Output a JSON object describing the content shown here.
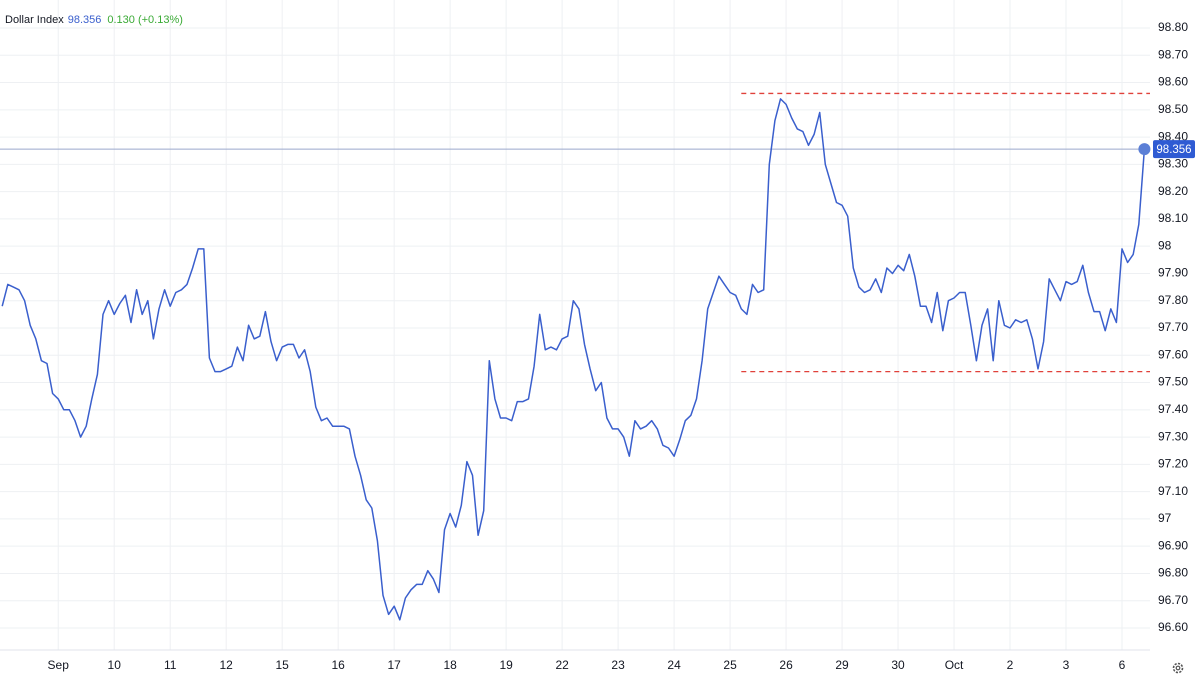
{
  "chart_data": {
    "type": "line",
    "change": "0.130 (+0.13%)",
    "last_price": 98.356,
    "series": [
      {
        "name": "Dollar Index",
        "color": "#3a5fcd",
        "values": [
          97.78,
          97.86,
          97.85,
          97.84,
          97.8,
          97.71,
          97.66,
          97.58,
          97.57,
          97.46,
          97.44,
          97.4,
          97.4,
          97.36,
          97.3,
          97.34,
          97.44,
          97.53,
          97.75,
          97.8,
          97.75,
          97.79,
          97.82,
          97.72,
          97.84,
          97.75,
          97.8,
          97.66,
          97.77,
          97.84,
          97.78,
          97.83,
          97.84,
          97.86,
          97.92,
          97.99,
          97.99,
          97.59,
          97.54,
          97.54,
          97.55,
          97.56,
          97.63,
          97.58,
          97.71,
          97.66,
          97.67,
          97.76,
          97.65,
          97.58,
          97.63,
          97.64,
          97.64,
          97.59,
          97.62,
          97.54,
          97.41,
          97.36,
          97.37,
          97.34,
          97.34,
          97.34,
          97.33,
          97.23,
          97.16,
          97.07,
          97.04,
          96.92,
          96.72,
          96.65,
          96.68,
          96.63,
          96.71,
          96.74,
          96.76,
          96.76,
          96.81,
          96.78,
          96.73,
          96.96,
          97.02,
          96.97,
          97.05,
          97.21,
          97.16,
          96.94,
          97.03,
          97.58,
          97.44,
          97.37,
          97.37,
          97.36,
          97.43,
          97.43,
          97.44,
          97.56,
          97.75,
          97.62,
          97.63,
          97.62,
          97.66,
          97.67,
          97.8,
          97.77,
          97.64,
          97.55,
          97.47,
          97.5,
          97.37,
          97.33,
          97.33,
          97.3,
          97.23,
          97.36,
          97.33,
          97.34,
          97.36,
          97.33,
          97.27,
          97.26,
          97.23,
          97.29,
          97.36,
          97.38,
          97.44,
          97.58,
          97.77,
          97.83,
          97.89,
          97.86,
          97.83,
          97.82,
          97.77,
          97.75,
          97.86,
          97.83,
          97.84,
          98.3,
          98.46,
          98.54,
          98.52,
          98.47,
          98.43,
          98.42,
          98.37,
          98.41,
          98.49,
          98.3,
          98.23,
          98.16,
          98.15,
          98.11,
          97.92,
          97.85,
          97.83,
          97.84,
          97.88,
          97.83,
          97.92,
          97.9,
          97.93,
          97.91,
          97.97,
          97.89,
          97.78,
          97.78,
          97.72,
          97.83,
          97.69,
          97.8,
          97.81,
          97.83,
          97.83,
          97.71,
          97.58,
          97.71,
          97.77,
          97.58,
          97.8,
          97.71,
          97.7,
          97.73,
          97.72,
          97.73,
          97.66,
          97.55,
          97.65,
          97.88,
          97.84,
          97.8,
          97.87,
          97.86,
          97.87,
          97.93,
          97.83,
          97.76,
          97.76,
          97.69,
          97.77,
          97.72,
          97.99,
          97.94,
          97.97,
          98.08,
          98.356
        ]
      }
    ],
    "x": [
      -1.0,
      -0.9,
      -0.8,
      -0.7,
      -0.6,
      -0.5,
      -0.4,
      -0.3,
      -0.2,
      -0.1,
      0.0,
      0.1,
      0.2,
      0.3,
      0.4,
      0.5,
      0.6,
      0.7,
      0.8,
      0.9,
      1.0,
      1.1,
      1.2,
      1.3,
      1.4,
      1.5,
      1.6,
      1.7,
      1.8,
      1.9,
      2.0,
      2.1,
      2.2,
      2.3,
      2.4,
      2.5,
      2.6,
      2.7,
      2.8,
      2.9,
      3.0,
      3.1,
      3.2,
      3.3,
      3.4,
      3.5,
      3.6,
      3.7,
      3.8,
      3.9,
      4.0,
      4.1,
      4.2,
      4.3,
      4.4,
      4.5,
      4.6,
      4.7,
      4.8,
      4.9,
      5.0,
      5.1,
      5.2,
      5.3,
      5.4,
      5.5,
      5.6,
      5.7,
      5.8,
      5.9,
      6.0,
      6.1,
      6.2,
      6.3,
      6.4,
      6.5,
      6.6,
      6.7,
      6.8,
      6.9,
      7.0,
      7.1,
      7.2,
      7.3,
      7.4,
      7.5,
      7.6,
      7.7,
      7.8,
      7.9,
      8.0,
      8.1,
      8.2,
      8.3,
      8.4,
      8.5,
      8.6,
      8.7,
      8.8,
      8.9,
      9.0,
      9.1,
      9.2,
      9.3,
      9.4,
      9.5,
      9.6,
      9.7,
      9.8,
      9.9,
      10.0,
      10.1,
      10.2,
      10.3,
      10.4,
      10.5,
      10.6,
      10.7,
      10.8,
      10.9,
      11.0,
      11.1,
      11.2,
      11.3,
      11.4,
      11.5,
      11.6,
      11.7,
      11.8,
      11.9,
      12.0,
      12.1,
      12.2,
      12.3,
      12.4,
      12.5,
      12.6,
      12.7,
      12.8,
      12.9,
      13.0,
      13.1,
      13.2,
      13.3,
      13.4,
      13.5,
      13.6,
      13.7,
      13.8,
      13.9,
      14.0,
      14.1,
      14.2,
      14.3,
      14.4,
      14.5,
      14.6,
      14.7,
      14.8,
      14.9,
      15.0,
      15.1,
      15.2,
      15.3,
      15.4,
      15.5,
      15.6,
      15.7,
      15.8,
      15.9,
      16.0,
      16.1,
      16.2,
      16.3,
      16.4,
      16.5,
      16.6,
      16.7,
      16.8,
      16.9,
      17.0,
      17.1,
      17.2,
      17.3,
      17.4,
      17.5,
      17.6,
      17.7,
      17.8,
      17.9,
      18.0,
      18.1,
      18.2,
      18.3,
      18.4,
      18.5,
      18.6,
      18.7,
      18.8,
      18.9,
      19.0,
      19.1,
      19.2,
      19.3,
      19.4
    ],
    "xlim": [
      -1.04,
      19.5
    ],
    "xticks": [
      {
        "value": 0,
        "label": "Sep"
      },
      {
        "value": 1,
        "label": "10"
      },
      {
        "value": 2,
        "label": "11"
      },
      {
        "value": 3,
        "label": "12"
      },
      {
        "value": 4,
        "label": "15"
      },
      {
        "value": 5,
        "label": "16"
      },
      {
        "value": 6,
        "label": "17"
      },
      {
        "value": 7,
        "label": "18"
      },
      {
        "value": 8,
        "label": "19"
      },
      {
        "value": 9,
        "label": "22"
      },
      {
        "value": 10,
        "label": "23"
      },
      {
        "value": 11,
        "label": "24"
      },
      {
        "value": 12,
        "label": "25"
      },
      {
        "value": 13,
        "label": "26"
      },
      {
        "value": 14,
        "label": "29"
      },
      {
        "value": 15,
        "label": "30"
      },
      {
        "value": 16,
        "label": "Oct"
      },
      {
        "value": 17,
        "label": "2"
      },
      {
        "value": 18,
        "label": "3"
      },
      {
        "value": 19,
        "label": "6"
      }
    ],
    "ylim": [
      96.6,
      98.8
    ],
    "yticks": [
      {
        "value": 98.8,
        "label": "98.80"
      },
      {
        "value": 98.7,
        "label": "98.70"
      },
      {
        "value": 98.6,
        "label": "98.60"
      },
      {
        "value": 98.5,
        "label": "98.50"
      },
      {
        "value": 98.4,
        "label": "98.40"
      },
      {
        "value": 98.3,
        "label": "98.30"
      },
      {
        "value": 98.2,
        "label": "98.20"
      },
      {
        "value": 98.1,
        "label": "98.10"
      },
      98,
      {
        "value": 97.9,
        "label": "97.90"
      },
      {
        "value": 97.8,
        "label": "97.80"
      },
      {
        "value": 97.7,
        "label": "97.70"
      },
      {
        "value": 97.6,
        "label": "97.60"
      },
      {
        "value": 97.5,
        "label": "97.50"
      },
      {
        "value": 97.4,
        "label": "97.40"
      },
      {
        "value": 97.3,
        "label": "97.30"
      },
      {
        "value": 97.2,
        "label": "97.20"
      },
      {
        "value": 97.1,
        "label": "97.10"
      },
      97,
      {
        "value": 96.9,
        "label": "96.90"
      },
      {
        "value": 96.8,
        "label": "96.80"
      },
      {
        "value": 96.7,
        "label": "96.70"
      },
      {
        "value": 96.6,
        "label": "96.60"
      }
    ],
    "grid": true,
    "reference_lines": [
      {
        "value": 98.56,
        "x_start": 12.2,
        "color": "#e0413a"
      },
      {
        "value": 97.54,
        "x_start": 12.2,
        "color": "#e0413a"
      }
    ]
  }
}
